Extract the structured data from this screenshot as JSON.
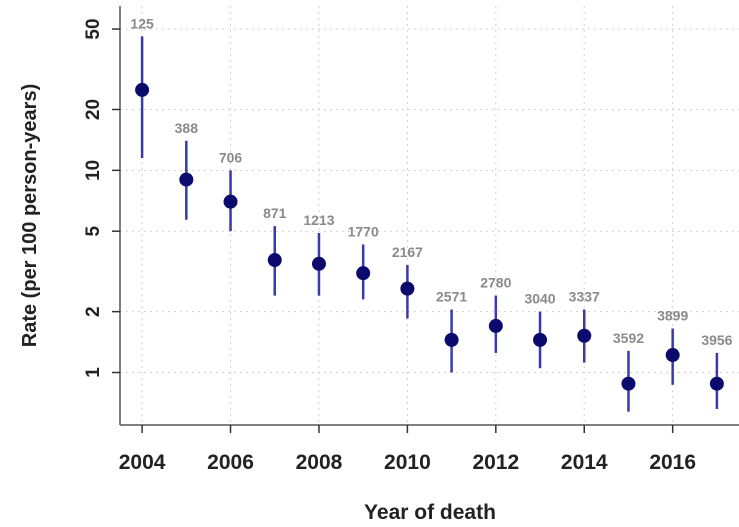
{
  "chart_data": {
    "type": "scatter",
    "title": "",
    "xlabel": "Year of death",
    "ylabel": "Rate (per 100 person-years)",
    "yscale": "log",
    "xlim": [
      2003.5,
      2017.5
    ],
    "ylim": [
      0.55,
      65
    ],
    "xticks": [
      2004,
      2006,
      2008,
      2010,
      2012,
      2014,
      2016
    ],
    "yticks": [
      1,
      2,
      5,
      10,
      20,
      50
    ],
    "grid": true,
    "legend": "none",
    "colors": {
      "point": "#0b0b6e",
      "errorbar": "#3a3aa8",
      "count_label": "#8a8a8a",
      "grid": "#d0d0d0"
    },
    "points": [
      {
        "x": 2004,
        "y": 25,
        "lo": 11.5,
        "hi": 46,
        "label": "125"
      },
      {
        "x": 2005,
        "y": 9.0,
        "lo": 5.7,
        "hi": 14,
        "label": "388"
      },
      {
        "x": 2006,
        "y": 7.0,
        "lo": 5.0,
        "hi": 10,
        "label": "706"
      },
      {
        "x": 2007,
        "y": 3.6,
        "lo": 2.4,
        "hi": 5.3,
        "label": "871"
      },
      {
        "x": 2008,
        "y": 3.45,
        "lo": 2.4,
        "hi": 4.9,
        "label": "1213"
      },
      {
        "x": 2009,
        "y": 3.1,
        "lo": 2.3,
        "hi": 4.3,
        "label": "1770"
      },
      {
        "x": 2010,
        "y": 2.6,
        "lo": 1.85,
        "hi": 3.4,
        "label": "2167"
      },
      {
        "x": 2011,
        "y": 1.45,
        "lo": 1.0,
        "hi": 2.05,
        "label": "2571"
      },
      {
        "x": 2012,
        "y": 1.7,
        "lo": 1.25,
        "hi": 2.4,
        "label": "2780"
      },
      {
        "x": 2013,
        "y": 1.45,
        "lo": 1.05,
        "hi": 2.0,
        "label": "3040"
      },
      {
        "x": 2014,
        "y": 1.52,
        "lo": 1.12,
        "hi": 2.05,
        "label": "3337"
      },
      {
        "x": 2015,
        "y": 0.88,
        "lo": 0.64,
        "hi": 1.28,
        "label": "3592"
      },
      {
        "x": 2016,
        "y": 1.22,
        "lo": 0.87,
        "hi": 1.65,
        "label": "3899"
      },
      {
        "x": 2017,
        "y": 0.88,
        "lo": 0.66,
        "hi": 1.25,
        "label": "3956"
      }
    ]
  }
}
